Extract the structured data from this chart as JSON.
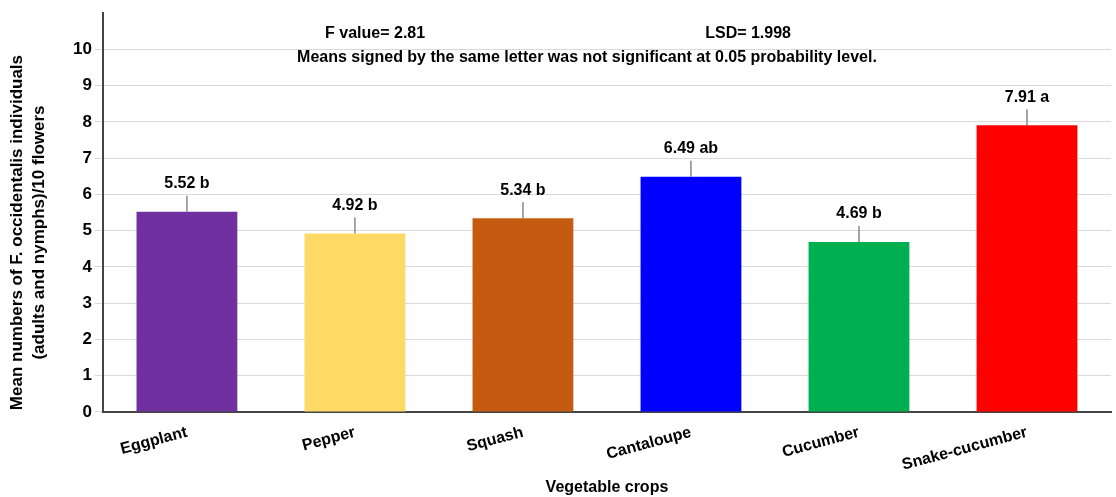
{
  "chart_data": {
    "type": "bar",
    "xlabel": "Vegetable crops",
    "ylabel": "Mean numbers of F. occidentalis individuals (adults and nymphs)/10 flowers",
    "categories": [
      "Eggplant",
      "Pepper",
      "Squash",
      "Cantaloupe",
      "Cucumber",
      "Snake-cucumber"
    ],
    "values": [
      5.52,
      4.92,
      5.34,
      6.49,
      4.69,
      7.91
    ],
    "colors": [
      "#7030a0",
      "#ffd966",
      "#c55a11",
      "#0000ff",
      "#00b050",
      "#ff0000"
    ],
    "value_labels": [
      "5.52 b",
      "4.92 b",
      "5.34 b",
      "6.49 ab",
      "4.69 b",
      "7.91 a"
    ],
    "annotations": [
      "F value= 2.81",
      "LSD= 1.998",
      "Means signed by the same letter was not significant at 0.05 probability level."
    ],
    "ylim": [
      0,
      11
    ],
    "yticks": [
      0,
      1,
      2,
      3,
      4,
      5,
      6,
      7,
      8,
      9,
      10
    ],
    "grid": "y",
    "legend": false
  }
}
